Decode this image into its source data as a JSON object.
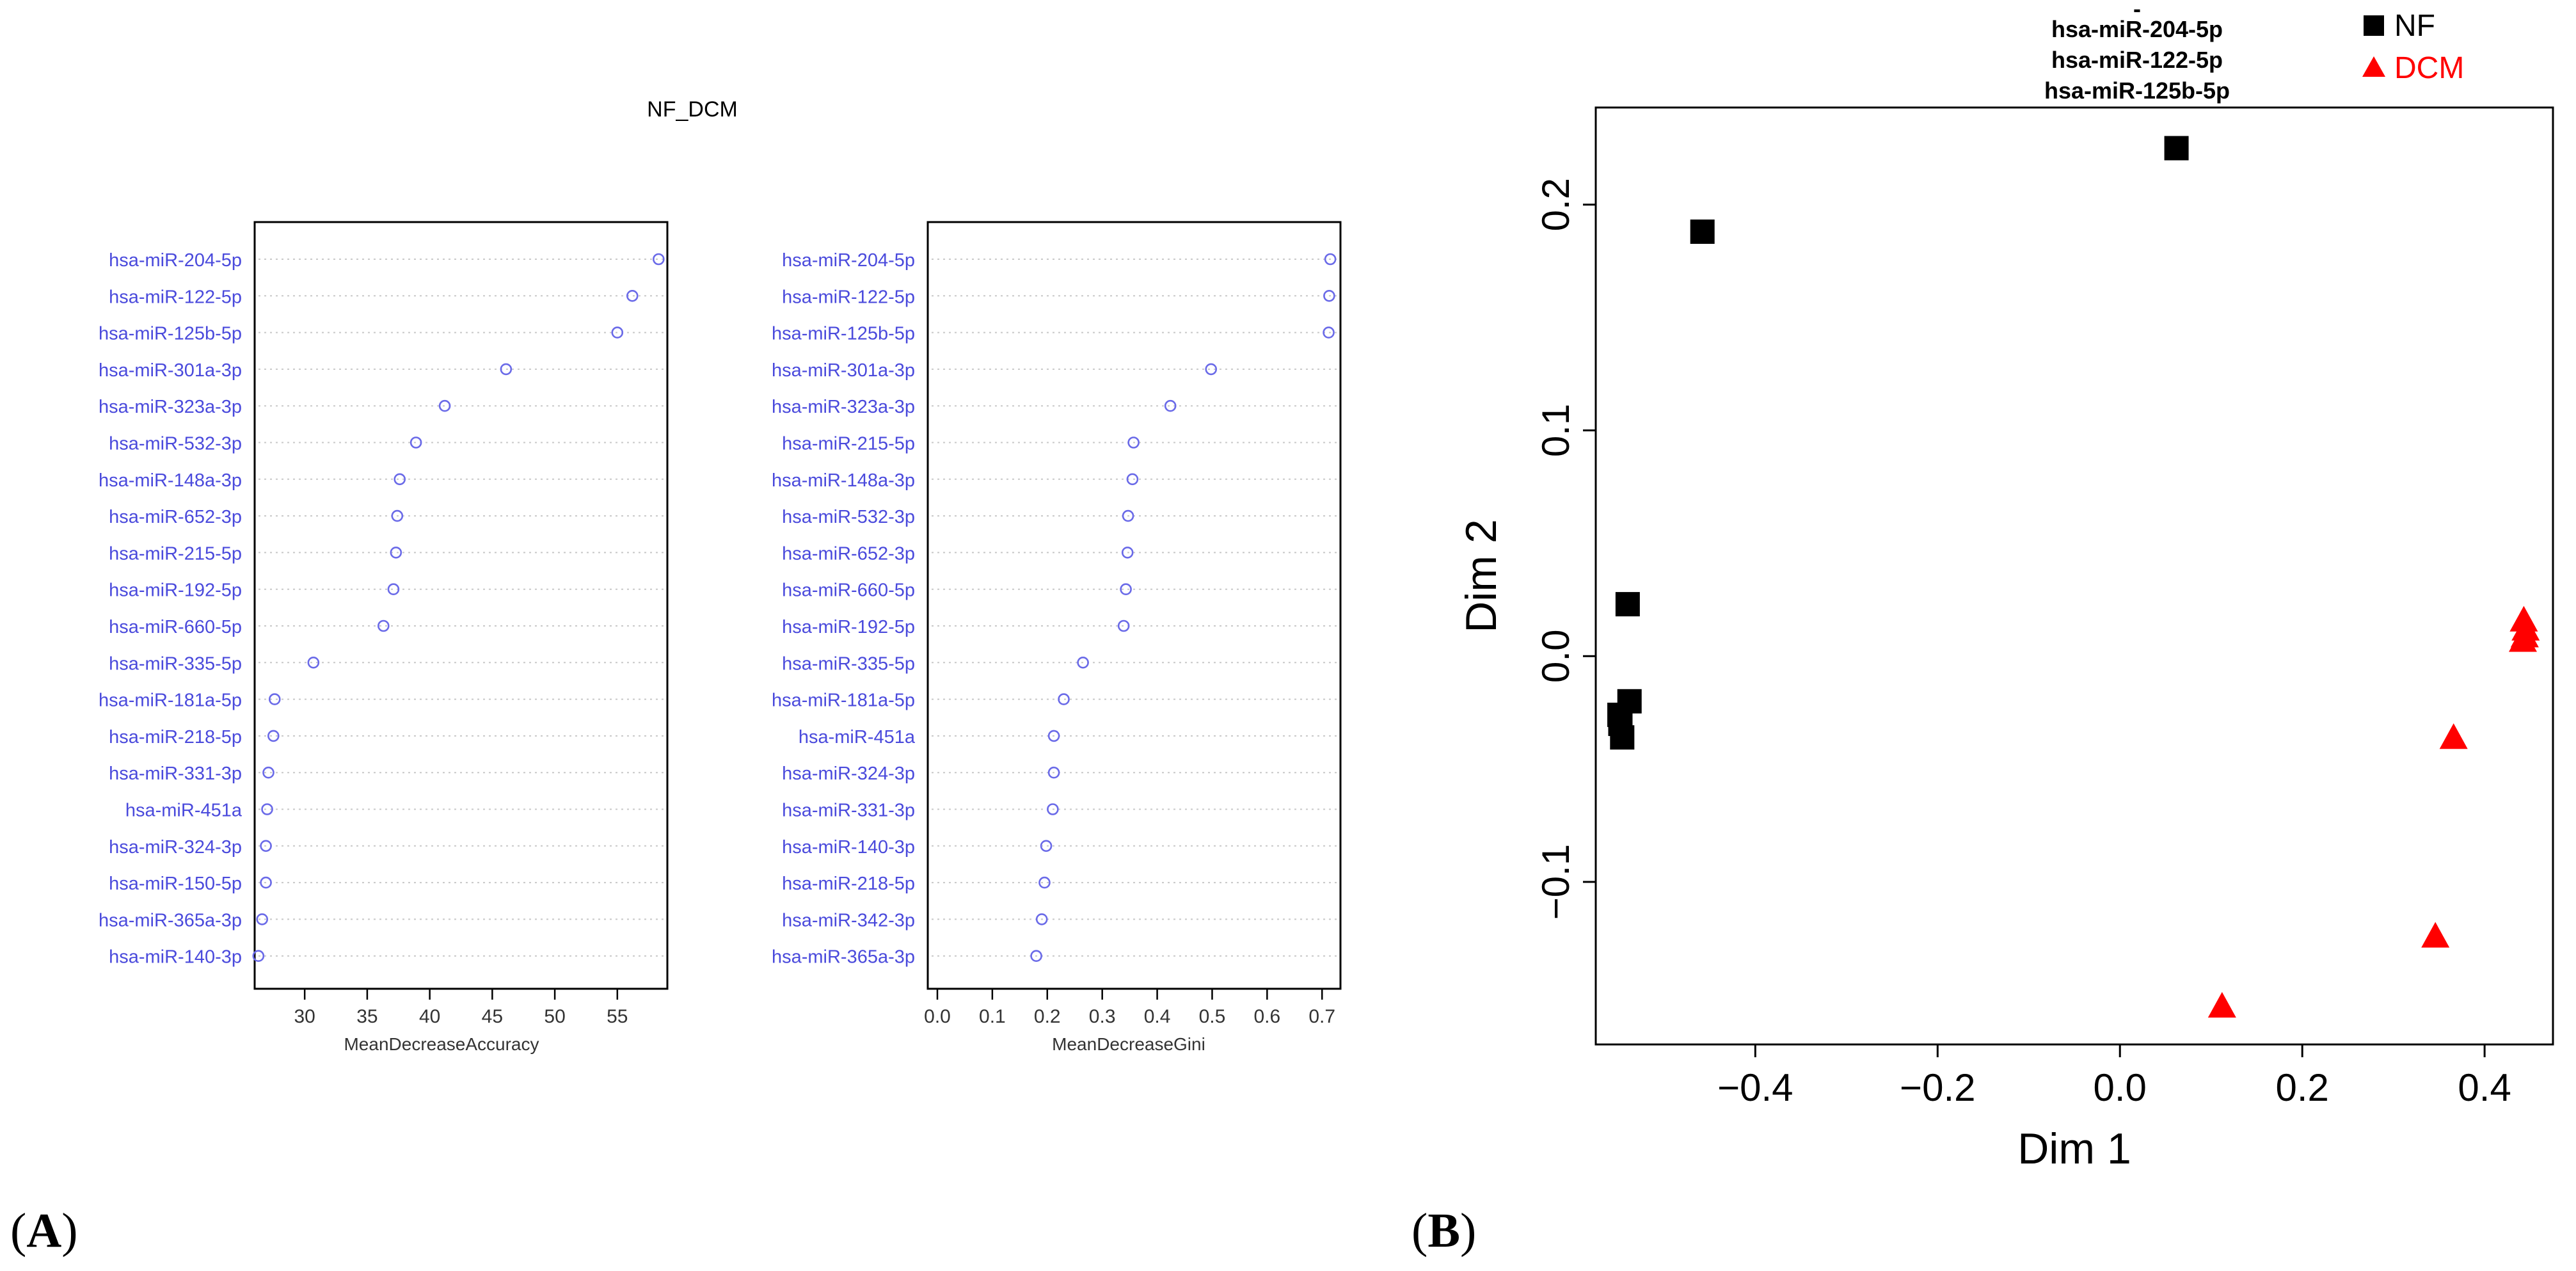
{
  "figure": {
    "panel_a_label": "(A)",
    "panel_a_letter": "A",
    "panel_b_label": "(B)",
    "panel_b_letter": "B",
    "panel_a_title": "NF_DCM"
  },
  "colors": {
    "dot": "#6a6ae8",
    "label": "#4a4adc",
    "nf": "#000000",
    "dcm": "#ff0000",
    "grid": "#c8c8c8"
  },
  "chart_data": [
    {
      "type": "scatter",
      "title": "NF_DCM",
      "xlabel": "MeanDecreaseAccuracy",
      "xlim": [
        26,
        59
      ],
      "xticks": [
        30,
        35,
        40,
        45,
        50,
        55
      ],
      "categories": [
        "hsa-miR-204-5p",
        "hsa-miR-122-5p",
        "hsa-miR-125b-5p",
        "hsa-miR-301a-3p",
        "hsa-miR-323a-3p",
        "hsa-miR-532-3p",
        "hsa-miR-148a-3p",
        "hsa-miR-652-3p",
        "hsa-miR-215-5p",
        "hsa-miR-192-5p",
        "hsa-miR-660-5p",
        "hsa-miR-335-5p",
        "hsa-miR-181a-5p",
        "hsa-miR-218-5p",
        "hsa-miR-331-3p",
        "hsa-miR-451a",
        "hsa-miR-324-3p",
        "hsa-miR-150-5p",
        "hsa-miR-365a-3p",
        "hsa-miR-140-3p"
      ],
      "values": [
        58.3,
        56.2,
        55.0,
        46.1,
        41.2,
        38.9,
        37.6,
        37.4,
        37.3,
        37.1,
        36.3,
        30.7,
        27.6,
        27.5,
        27.1,
        27.0,
        26.9,
        26.9,
        26.6,
        26.3
      ]
    },
    {
      "type": "scatter",
      "xlabel": "MeanDecreaseGini",
      "xlim": [
        0,
        0.73
      ],
      "xticks": [
        "0.0",
        "0.1",
        "0.2",
        "0.3",
        "0.4",
        "0.5",
        "0.6",
        "0.7"
      ],
      "categories": [
        "hsa-miR-204-5p",
        "hsa-miR-122-5p",
        "hsa-miR-125b-5p",
        "hsa-miR-301a-3p",
        "hsa-miR-323a-3p",
        "hsa-miR-215-5p",
        "hsa-miR-148a-3p",
        "hsa-miR-532-3p",
        "hsa-miR-652-3p",
        "hsa-miR-660-5p",
        "hsa-miR-192-5p",
        "hsa-miR-335-5p",
        "hsa-miR-181a-5p",
        "hsa-miR-451a",
        "hsa-miR-324-3p",
        "hsa-miR-331-3p",
        "hsa-miR-140-3p",
        "hsa-miR-218-5p",
        "hsa-miR-342-3p",
        "hsa-miR-365a-3p"
      ],
      "values": [
        0.715,
        0.713,
        0.712,
        0.498,
        0.424,
        0.357,
        0.355,
        0.347,
        0.346,
        0.343,
        0.339,
        0.265,
        0.23,
        0.212,
        0.212,
        0.21,
        0.198,
        0.195,
        0.19,
        0.18
      ]
    },
    {
      "type": "scatter",
      "title_lines": [
        "hsa-miR-204-5p",
        "hsa-miR-122-5p",
        "hsa-miR-125b-5p"
      ],
      "title_dash": "-",
      "xlabel": "Dim 1",
      "ylabel": "Dim 2",
      "xlim": [
        -0.575,
        0.475
      ],
      "ylim": [
        -0.172,
        0.243
      ],
      "xticks": [
        "-0.4",
        "-0.2",
        "0.0",
        "0.2",
        "0.4"
      ],
      "yticks": [
        "-0.1",
        "0.0",
        "0.1",
        "0.2"
      ],
      "legend_position": "top-right",
      "series": [
        {
          "name": "NF",
          "marker": "square",
          "points": [
            [
              0.062,
              0.225
            ],
            [
              -0.458,
              0.188
            ],
            [
              -0.54,
              0.023
            ],
            [
              -0.538,
              -0.02
            ],
            [
              -0.549,
              -0.026
            ],
            [
              -0.548,
              -0.03
            ],
            [
              -0.546,
              -0.036
            ]
          ]
        },
        {
          "name": "DCM",
          "marker": "triangle",
          "points": [
            [
              0.443,
              0.016
            ],
            [
              0.445,
              0.012
            ],
            [
              0.444,
              0.009
            ],
            [
              0.442,
              0.007
            ],
            [
              0.366,
              -0.036
            ],
            [
              0.346,
              -0.124
            ],
            [
              0.112,
              -0.155
            ]
          ]
        }
      ]
    }
  ]
}
